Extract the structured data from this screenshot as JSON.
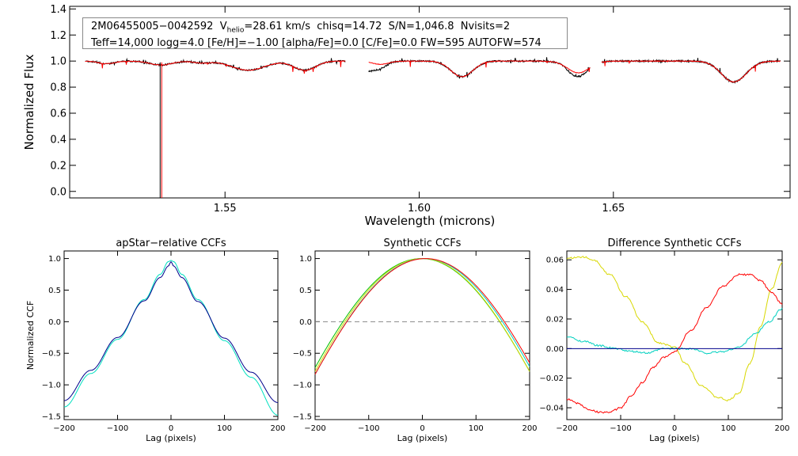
{
  "chart_data": [
    {
      "type": "line",
      "id": "spectrum",
      "title": "",
      "xlabel": "Wavelength (microns)",
      "ylabel": "Normalized Flux",
      "xlim": [
        1.51,
        1.6955
      ],
      "ylim": [
        -0.05,
        1.42
      ],
      "xticks": [
        1.55,
        1.6,
        1.65
      ],
      "xtick_labels": [
        "1.55",
        "1.60",
        "1.65"
      ],
      "yticks": [
        0.0,
        0.2,
        0.4,
        0.6,
        0.8,
        1.0,
        1.2,
        1.4
      ],
      "ytick_labels": [
        "0.0",
        "0.2",
        "0.4",
        "0.6",
        "0.8",
        "1.0",
        "1.2",
        "1.4"
      ],
      "info_box": {
        "line1_id": "2M06455005−0042592",
        "line1_vpre": "V",
        "line1_vsub": "helio",
        "line1_rest": "=28.61 km/s  chisq=14.72  S/N=1,046.8  Nvisits=2",
        "line2": "Teff=14,000 logg=4.0 [Fe/H]=−1.00 [alpha/Fe]=0.0 [C/Fe]=0.0 FW=595 AUTOFW=574"
      },
      "chips": [
        [
          1.514,
          1.581
        ],
        [
          1.587,
          1.644
        ],
        [
          1.647,
          1.693
        ]
      ],
      "absorption_lines": [
        {
          "center": 1.5195,
          "depth": 0.02,
          "width": 0.003
        },
        {
          "center": 1.5335,
          "depth": 0.03,
          "width": 0.004
        },
        {
          "center": 1.544,
          "depth": 0.015,
          "width": 0.003
        },
        {
          "center": 1.556,
          "depth": 0.07,
          "width": 0.006
        },
        {
          "center": 1.5705,
          "depth": 0.07,
          "width": 0.004
        },
        {
          "center": 1.59,
          "depth": 0.025,
          "width": 0.003
        },
        {
          "center": 1.611,
          "depth": 0.12,
          "width": 0.004
        },
        {
          "center": 1.641,
          "depth": 0.09,
          "width": 0.004
        },
        {
          "center": 1.681,
          "depth": 0.16,
          "width": 0.0045
        }
      ],
      "spike": {
        "wavelength": 1.5335,
        "min_flux": -0.05
      },
      "series": [
        {
          "name": "observed",
          "color": "#000000"
        },
        {
          "name": "model",
          "color": "#ff0000"
        }
      ]
    },
    {
      "type": "line",
      "id": "ccf1",
      "title": "apStar−relative CCFs",
      "xlabel": "Lag (pixels)",
      "ylabel": "Normalized CCF",
      "xlim": [
        -200,
        200
      ],
      "ylim": [
        -1.55,
        1.12
      ],
      "xticks": [
        -200,
        -100,
        0,
        100,
        200
      ],
      "xtick_labels": [
        "−200",
        "−100",
        "0",
        "100",
        "200"
      ],
      "yticks": [
        -1.5,
        -1.0,
        -0.5,
        0.0,
        0.5,
        1.0
      ],
      "ytick_labels": [
        "−1.5",
        "−1.0",
        "−0.5",
        "0.0",
        "0.5",
        "1.0"
      ],
      "series": [
        {
          "name": "visit-1",
          "color": "#00e0c0",
          "x": [
            -200,
            -150,
            -100,
            -50,
            -20,
            -5,
            0,
            5,
            20,
            50,
            100,
            150,
            200
          ],
          "y": [
            -1.35,
            -0.82,
            -0.28,
            0.35,
            0.75,
            0.95,
            0.97,
            0.95,
            0.75,
            0.35,
            -0.3,
            -0.88,
            -1.48
          ]
        },
        {
          "name": "combined",
          "color": "#00008b",
          "x": [
            -200,
            -150,
            -100,
            -50,
            -20,
            -5,
            0,
            5,
            20,
            50,
            100,
            150,
            200
          ],
          "y": [
            -1.25,
            -0.77,
            -0.25,
            0.33,
            0.7,
            0.88,
            0.95,
            0.88,
            0.7,
            0.32,
            -0.26,
            -0.8,
            -1.28
          ]
        }
      ]
    },
    {
      "type": "line",
      "id": "ccf2",
      "title": "Synthetic CCFs",
      "xlabel": "Lag (pixels)",
      "ylabel": "",
      "xlim": [
        -200,
        200
      ],
      "ylim": [
        -1.55,
        1.12
      ],
      "xticks": [
        -200,
        -100,
        0,
        100,
        200
      ],
      "xtick_labels": [
        "−200",
        "−100",
        "0",
        "100",
        "200"
      ],
      "yticks": [
        -1.5,
        -1.0,
        -0.5,
        0.0,
        0.5,
        1.0
      ],
      "ytick_labels": [
        "−1.5",
        "−1.0",
        "−0.5",
        "0.0",
        "0.5",
        "1.0"
      ],
      "zero_line": 0.0,
      "series": [
        {
          "name": "syn-green",
          "color": "#00c000",
          "center": -2,
          "halfwidth": 198
        },
        {
          "name": "syn-yellow",
          "color": "#d8d800",
          "center": 0,
          "halfwidth": 196
        },
        {
          "name": "syn-cyan",
          "color": "#00d0c0",
          "center": 4,
          "halfwidth": 197
        },
        {
          "name": "syn-red",
          "color": "#ff0000",
          "center": 6,
          "halfwidth": 199
        }
      ]
    },
    {
      "type": "line",
      "id": "ccf3",
      "title": "Difference Synthetic CCFs",
      "xlabel": "Lag (pixels)",
      "ylabel": "",
      "xlim": [
        -200,
        200
      ],
      "ylim": [
        -0.048,
        0.066
      ],
      "xticks": [
        -200,
        -100,
        0,
        100,
        200
      ],
      "xtick_labels": [
        "−200",
        "−100",
        "0",
        "100",
        "200"
      ],
      "yticks": [
        -0.04,
        -0.02,
        0.0,
        0.02,
        0.04,
        0.06
      ],
      "ytick_labels": [
        "−0.04",
        "−0.02",
        "0.00",
        "0.02",
        "0.04",
        "0.06"
      ],
      "series": [
        {
          "name": "diff-yellow",
          "color": "#d8d800",
          "x": [
            -200,
            -170,
            -150,
            -120,
            -90,
            -60,
            -30,
            0,
            20,
            50,
            80,
            100,
            120,
            140,
            160,
            180,
            200
          ],
          "y": [
            0.061,
            0.062,
            0.06,
            0.05,
            0.035,
            0.018,
            0.004,
            0.001,
            -0.01,
            -0.025,
            -0.033,
            -0.035,
            -0.03,
            -0.01,
            0.015,
            0.04,
            0.058
          ]
        },
        {
          "name": "diff-red",
          "color": "#ff0000",
          "x": [
            -200,
            -180,
            -160,
            -140,
            -120,
            -100,
            -80,
            -60,
            -40,
            -20,
            0,
            30,
            60,
            90,
            120,
            140,
            160,
            180,
            200
          ],
          "y": [
            -0.034,
            -0.037,
            -0.041,
            -0.043,
            -0.043,
            -0.04,
            -0.032,
            -0.023,
            -0.013,
            -0.006,
            -0.002,
            0.012,
            0.028,
            0.042,
            0.05,
            0.05,
            0.046,
            0.038,
            0.03
          ]
        },
        {
          "name": "diff-cyan",
          "color": "#00d0c0",
          "x": [
            -200,
            -170,
            -140,
            -110,
            -80,
            -50,
            -20,
            0,
            30,
            60,
            90,
            120,
            150,
            175,
            200
          ],
          "y": [
            0.008,
            0.005,
            0.002,
            0.0,
            -0.002,
            -0.003,
            0.0,
            0.0,
            0.0,
            -0.003,
            -0.002,
            0.001,
            0.01,
            0.018,
            0.027
          ]
        },
        {
          "name": "diff-blue",
          "color": "#00008b",
          "x": [
            -200,
            200
          ],
          "y": [
            0.0,
            0.0
          ]
        }
      ]
    }
  ]
}
